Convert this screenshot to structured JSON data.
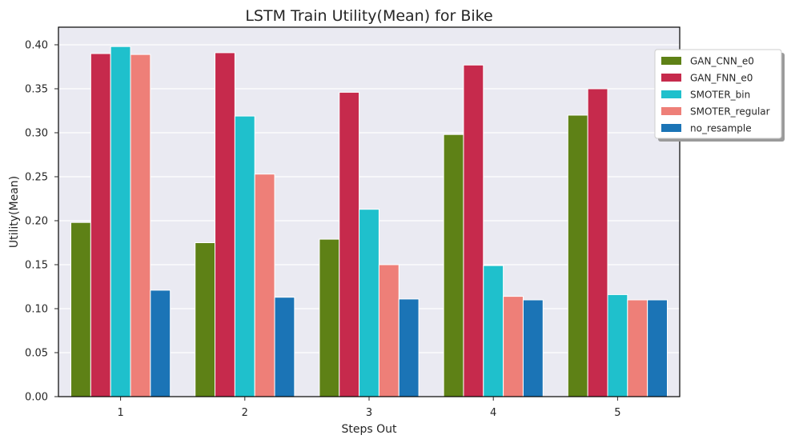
{
  "chart_data": {
    "type": "bar",
    "title": "LSTM Train Utility(Mean) for Bike",
    "xlabel": "Steps Out",
    "ylabel": "Utility(Mean)",
    "categories": [
      "1",
      "2",
      "3",
      "4",
      "5"
    ],
    "ylim": [
      0,
      0.42
    ],
    "yticks": [
      "0.00",
      "0.05",
      "0.10",
      "0.15",
      "0.20",
      "0.25",
      "0.30",
      "0.35",
      "0.40"
    ],
    "grid": true,
    "legend_position": "upper-right-outside",
    "series": [
      {
        "name": "GAN_CNN_e0",
        "color": "#5e8116",
        "values": [
          0.198,
          0.175,
          0.179,
          0.298,
          0.32
        ]
      },
      {
        "name": "GAN_FNN_e0",
        "color": "#c62a4c",
        "values": [
          0.39,
          0.391,
          0.346,
          0.377,
          0.35
        ]
      },
      {
        "name": "SMOTER_bin",
        "color": "#1fc0cc",
        "values": [
          0.398,
          0.319,
          0.213,
          0.149,
          0.116
        ]
      },
      {
        "name": "SMOTER_regular",
        "color": "#ee7f78",
        "values": [
          0.389,
          0.253,
          0.15,
          0.114,
          0.11
        ]
      },
      {
        "name": "no_resample",
        "color": "#1b74b6",
        "values": [
          0.121,
          0.113,
          0.111,
          0.11,
          0.11
        ]
      }
    ]
  }
}
